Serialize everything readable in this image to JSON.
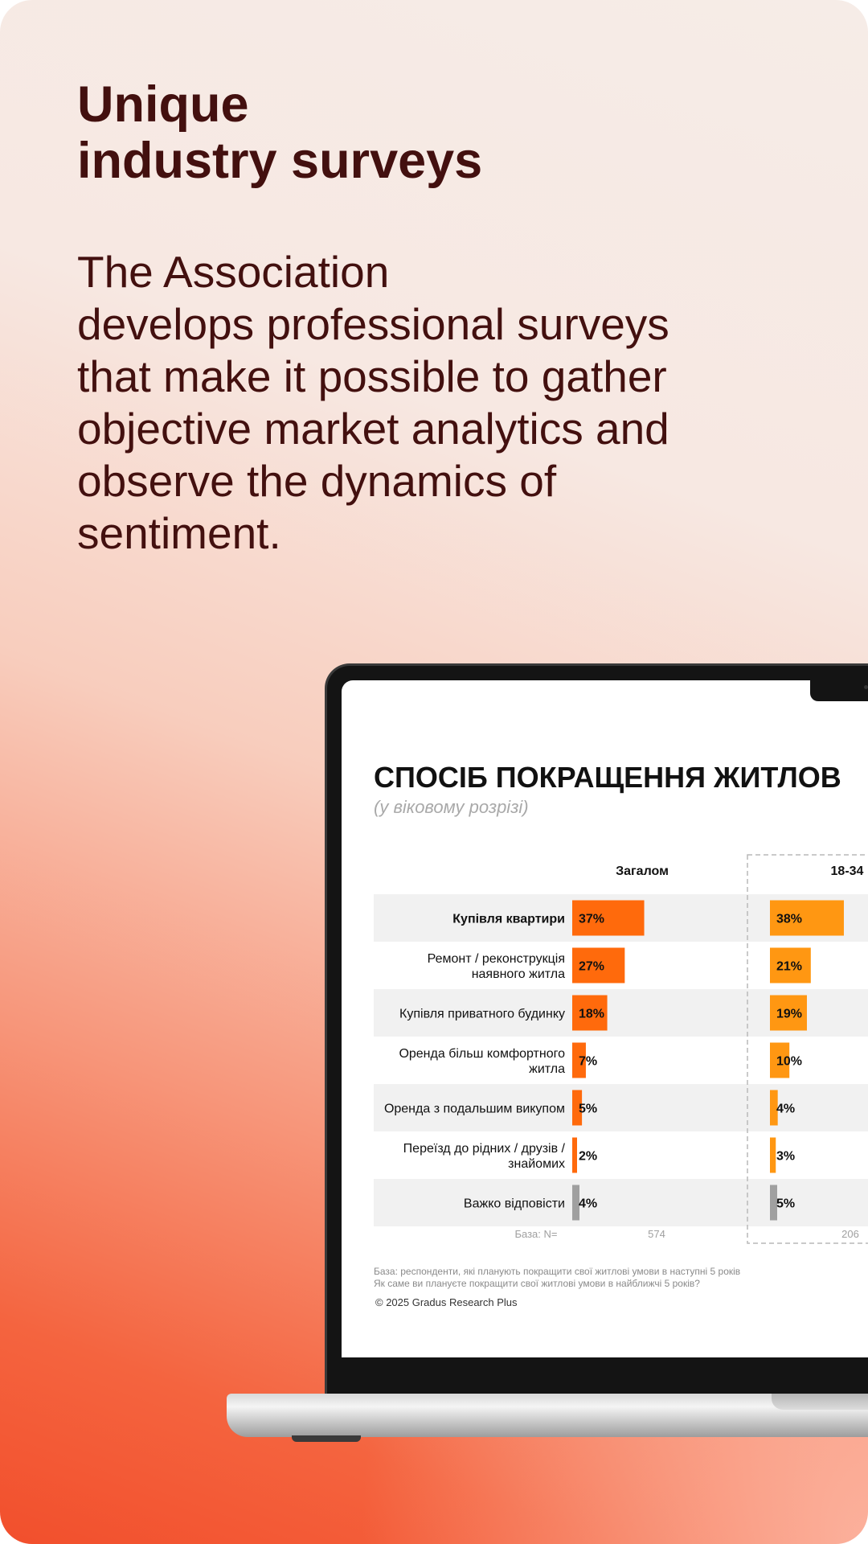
{
  "headline": [
    "Unique",
    "industry surveys"
  ],
  "body_lines": [
    "The Association",
    "develops professional surveys",
    "that make it possible to gather",
    "objective market analytics and",
    "observe the dynamics of",
    "sentiment."
  ],
  "colors": {
    "text_dark": "#43100f",
    "bar_total": "#ff6a0c",
    "bar_age": "#ff9712",
    "bar_neutral": "#a0a0a0"
  },
  "chart_data": {
    "type": "bar",
    "orientation": "horizontal",
    "title": "СПОСІБ ПОКРАЩЕННЯ ЖИТЛОВ",
    "subtitle": "(у віковому розрізі)",
    "categories": [
      [
        "Купівля квартири"
      ],
      [
        "Ремонт / реконструкція",
        "наявного житла"
      ],
      [
        "Купівля приватного будинку"
      ],
      [
        "Оренда більш комфортного",
        "житла"
      ],
      [
        "Оренда з подальшим викупом"
      ],
      [
        "Переїзд до рідних / друзів /",
        "знайомих"
      ],
      [
        "Важко відповісти"
      ]
    ],
    "series": [
      {
        "name": "Загалом",
        "values": [
          37,
          27,
          18,
          7,
          5,
          2,
          4
        ],
        "labels": [
          "37%",
          "27%",
          "18%",
          "7%",
          "5%",
          "2%",
          "4%"
        ],
        "base": "574"
      },
      {
        "name": "18-34",
        "values": [
          38,
          21,
          19,
          10,
          4,
          3,
          5
        ],
        "labels": [
          "38%",
          "21%",
          "19%",
          "10%",
          "4%",
          "3%",
          "5%"
        ],
        "base": "206"
      }
    ],
    "base_label": "База: N=",
    "unit": "%"
  },
  "footnotes": [
    "База: респонденти, які планують покращити свої житлові умови в наступні 5 років",
    "Як саме ви плануєте покращити свої житлові умови в найближчі 5 років?"
  ],
  "copyright": "© 2025 Gradus Research Plus"
}
